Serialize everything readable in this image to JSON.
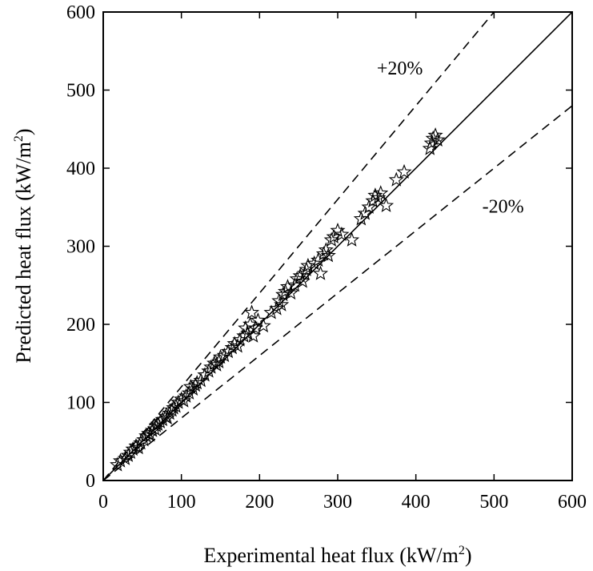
{
  "chart_data": {
    "type": "scatter",
    "title": "",
    "xlabel": "Experimental heat flux (kW/m",
    "xlabel_sup": "2",
    "xlabel_end": ")",
    "ylabel": "Predicted heat flux (kW/m",
    "ylabel_sup": "2",
    "ylabel_end": ")",
    "xlim": [
      0,
      600
    ],
    "ylim": [
      0,
      600
    ],
    "xticks": [
      0,
      100,
      200,
      300,
      400,
      500,
      600
    ],
    "yticks": [
      0,
      100,
      200,
      300,
      400,
      500,
      600
    ],
    "grid": false,
    "marker": "open-star",
    "reference_lines": [
      {
        "name": "perfect agreement",
        "style": "solid",
        "slope": 1.0
      },
      {
        "name": "+20%",
        "style": "dashed",
        "slope": 1.2
      },
      {
        "name": "-20%",
        "style": "dashed",
        "slope": 0.8
      }
    ],
    "annotations": [
      {
        "text": "+20%",
        "x": 350,
        "y": 520
      },
      {
        "text": "-20%",
        "x": 485,
        "y": 343
      }
    ],
    "series": [
      {
        "name": "data",
        "points": [
          [
            18,
            20
          ],
          [
            22,
            25
          ],
          [
            28,
            28
          ],
          [
            32,
            32
          ],
          [
            35,
            36
          ],
          [
            38,
            40
          ],
          [
            42,
            44
          ],
          [
            45,
            42
          ],
          [
            48,
            48
          ],
          [
            52,
            52
          ],
          [
            55,
            57
          ],
          [
            58,
            60
          ],
          [
            60,
            58
          ],
          [
            63,
            64
          ],
          [
            66,
            66
          ],
          [
            68,
            70
          ],
          [
            70,
            72
          ],
          [
            73,
            75
          ],
          [
            76,
            78
          ],
          [
            80,
            82
          ],
          [
            82,
            80
          ],
          [
            85,
            86
          ],
          [
            88,
            90
          ],
          [
            90,
            93
          ],
          [
            93,
            95
          ],
          [
            96,
            100
          ],
          [
            100,
            104
          ],
          [
            103,
            102
          ],
          [
            106,
            108
          ],
          [
            110,
            112
          ],
          [
            112,
            120
          ],
          [
            115,
            117
          ],
          [
            118,
            122
          ],
          [
            120,
            125
          ],
          [
            125,
            128
          ],
          [
            130,
            135
          ],
          [
            135,
            140
          ],
          [
            138,
            145
          ],
          [
            142,
            150
          ],
          [
            145,
            148
          ],
          [
            148,
            152
          ],
          [
            150,
            158
          ],
          [
            155,
            160
          ],
          [
            160,
            165
          ],
          [
            165,
            170
          ],
          [
            168,
            175
          ],
          [
            172,
            172
          ],
          [
            175,
            180
          ],
          [
            180,
            185
          ],
          [
            182,
            195
          ],
          [
            185,
            188
          ],
          [
            188,
            200
          ],
          [
            190,
            215
          ],
          [
            192,
            185
          ],
          [
            195,
            195
          ],
          [
            198,
            205
          ],
          [
            205,
            198
          ],
          [
            215,
            215
          ],
          [
            222,
            220
          ],
          [
            225,
            230
          ],
          [
            228,
            225
          ],
          [
            230,
            238
          ],
          [
            233,
            242
          ],
          [
            236,
            248
          ],
          [
            240,
            240
          ],
          [
            245,
            250
          ],
          [
            248,
            258
          ],
          [
            252,
            262
          ],
          [
            255,
            255
          ],
          [
            258,
            265
          ],
          [
            260,
            270
          ],
          [
            262,
            275
          ],
          [
            270,
            278
          ],
          [
            275,
            282
          ],
          [
            278,
            265
          ],
          [
            282,
            290
          ],
          [
            285,
            295
          ],
          [
            288,
            288
          ],
          [
            292,
            308
          ],
          [
            295,
            312
          ],
          [
            300,
            320
          ],
          [
            305,
            315
          ],
          [
            318,
            308
          ],
          [
            330,
            335
          ],
          [
            335,
            342
          ],
          [
            340,
            350
          ],
          [
            345,
            358
          ],
          [
            348,
            365
          ],
          [
            352,
            362
          ],
          [
            355,
            368
          ],
          [
            362,
            352
          ],
          [
            375,
            385
          ],
          [
            385,
            395
          ],
          [
            418,
            425
          ],
          [
            420,
            432
          ],
          [
            422,
            438
          ],
          [
            425,
            442
          ],
          [
            428,
            436
          ]
        ]
      }
    ]
  }
}
